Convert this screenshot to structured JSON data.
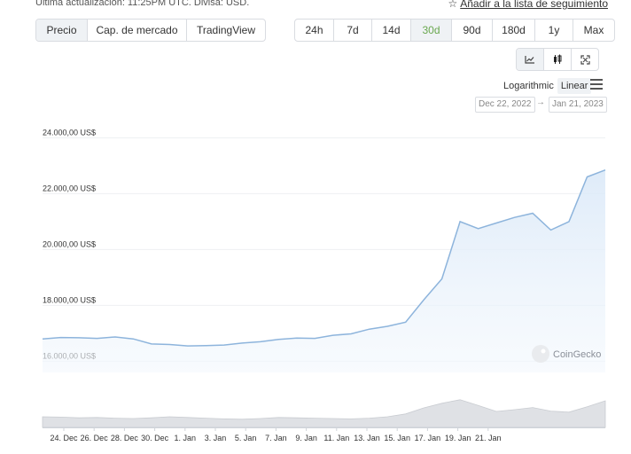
{
  "header": {
    "update_note": "Última actualización: 11:25PM UTC. Divisa: USD.",
    "watchlist_label": "Añadir a la lista de seguimiento"
  },
  "chart_type_tabs": [
    {
      "label": "Precio",
      "active": true
    },
    {
      "label": "Cap. de mercado",
      "active": false
    },
    {
      "label": "TradingView",
      "active": false
    }
  ],
  "range_tabs": [
    {
      "label": "24h",
      "active": false
    },
    {
      "label": "7d",
      "active": false
    },
    {
      "label": "14d",
      "active": false
    },
    {
      "label": "30d",
      "active": true
    },
    {
      "label": "90d",
      "active": false
    },
    {
      "label": "180d",
      "active": false
    },
    {
      "label": "1y",
      "active": false
    },
    {
      "label": "Max",
      "active": false
    }
  ],
  "view_icons": [
    "line-chart-icon",
    "candlestick-icon",
    "fullscreen-icon"
  ],
  "scale": {
    "options": [
      "Logarithmic",
      "Linear"
    ],
    "selected": "Linear"
  },
  "date_range": {
    "from": "Dec 22, 2022",
    "to": "Jan 21, 2023",
    "separator": "→"
  },
  "watermark": "CoinGecko",
  "colors": {
    "line": "#8db4dc",
    "area": "#eaf2fb",
    "volume": "#d7d9dd",
    "active_range": "#6aa84f"
  },
  "chart_data": {
    "type": "line",
    "ylim": [
      15600,
      24300
    ],
    "y_ticks": [
      16000,
      18000,
      20000,
      22000,
      24000
    ],
    "y_tick_labels": [
      "16.000,00 US$",
      "18.000,00 US$",
      "20.000,00 US$",
      "22.000,00 US$",
      "24.000,00 US$"
    ],
    "x_ticks": [
      "24. Dec",
      "26. Dec",
      "28. Dec",
      "30. Dec",
      "1. Jan",
      "3. Jan",
      "5. Jan",
      "7. Jan",
      "9. Jan",
      "11. Jan",
      "13. Jan",
      "15. Jan",
      "17. Jan",
      "19. Jan",
      "21. Jan"
    ],
    "x_range": [
      "2022-12-22",
      "2023-01-22"
    ],
    "series": [
      {
        "points": [
          [
            "2022-12-22",
            16800
          ],
          [
            "2022-12-23",
            16850
          ],
          [
            "2022-12-24",
            16840
          ],
          [
            "2022-12-25",
            16820
          ],
          [
            "2022-12-26",
            16870
          ],
          [
            "2022-12-27",
            16800
          ],
          [
            "2022-12-28",
            16620
          ],
          [
            "2022-12-29",
            16600
          ],
          [
            "2022-12-30",
            16550
          ],
          [
            "2022-12-31",
            16560
          ],
          [
            "2023-01-01",
            16580
          ],
          [
            "2023-01-02",
            16650
          ],
          [
            "2023-01-03",
            16700
          ],
          [
            "2023-01-04",
            16780
          ],
          [
            "2023-01-05",
            16830
          ],
          [
            "2023-01-06",
            16820
          ],
          [
            "2023-01-07",
            16930
          ],
          [
            "2023-01-08",
            16980
          ],
          [
            "2023-01-09",
            17150
          ],
          [
            "2023-01-10",
            17250
          ],
          [
            "2023-01-11",
            17400
          ],
          [
            "2023-01-12",
            18200
          ],
          [
            "2023-01-13",
            18950
          ],
          [
            "2023-01-14",
            21000
          ],
          [
            "2023-01-15",
            20750
          ],
          [
            "2023-01-16",
            20950
          ],
          [
            "2023-01-17",
            21150
          ],
          [
            "2023-01-18",
            21300
          ],
          [
            "2023-01-19",
            20700
          ],
          [
            "2023-01-20",
            21000
          ],
          [
            "2023-01-21",
            22600
          ],
          [
            "2023-01-22",
            22850
          ]
        ]
      }
    ],
    "volume": [
      0.3,
      0.29,
      0.27,
      0.28,
      0.26,
      0.25,
      0.27,
      0.3,
      0.28,
      0.26,
      0.24,
      0.23,
      0.25,
      0.28,
      0.27,
      0.26,
      0.25,
      0.24,
      0.26,
      0.3,
      0.38,
      0.55,
      0.68,
      0.78,
      0.62,
      0.45,
      0.5,
      0.56,
      0.46,
      0.43,
      0.58,
      0.75
    ],
    "grid": true
  }
}
